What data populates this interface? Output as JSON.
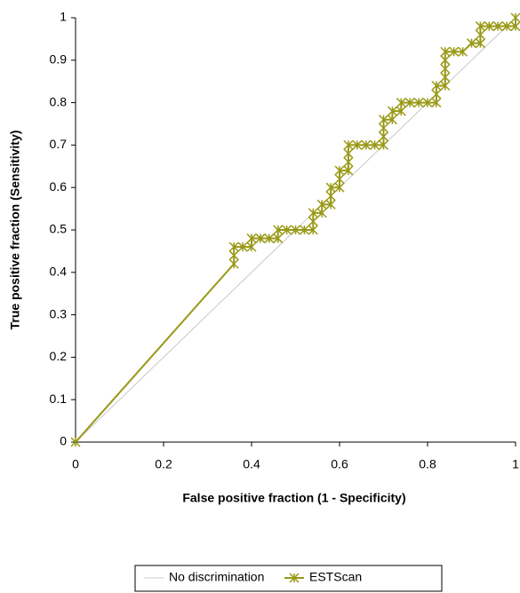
{
  "chart_data": {
    "type": "line",
    "xlabel": "False positive fraction (1 - Specificity)",
    "ylabel": "True positive fraction (Sensitivity)",
    "xlim": [
      0,
      1
    ],
    "ylim": [
      0,
      1
    ],
    "xticks": [
      0,
      0.2,
      0.4,
      0.6,
      0.8,
      1
    ],
    "yticks": [
      0,
      0.1,
      0.2,
      0.3,
      0.4,
      0.5,
      0.6,
      0.7,
      0.8,
      0.9,
      1
    ],
    "legend": "bottom",
    "series": [
      {
        "name": "No discrimination",
        "color": "#c8c8c8",
        "marker": "none",
        "x": [
          0,
          1
        ],
        "values": [
          0,
          1
        ]
      },
      {
        "name": "ESTScan",
        "color": "#999917",
        "marker": "asterisk",
        "x": [
          0,
          0.36,
          0.36,
          0.36,
          0.38,
          0.4,
          0.4,
          0.42,
          0.44,
          0.46,
          0.46,
          0.48,
          0.5,
          0.52,
          0.54,
          0.54,
          0.54,
          0.56,
          0.56,
          0.58,
          0.58,
          0.58,
          0.6,
          0.6,
          0.6,
          0.62,
          0.62,
          0.62,
          0.62,
          0.64,
          0.66,
          0.68,
          0.7,
          0.7,
          0.7,
          0.7,
          0.72,
          0.72,
          0.74,
          0.74,
          0.76,
          0.78,
          0.8,
          0.82,
          0.82,
          0.82,
          0.84,
          0.84,
          0.84,
          0.84,
          0.84,
          0.86,
          0.88,
          0.9,
          0.92,
          0.92,
          0.92,
          0.94,
          0.96,
          0.98,
          1.0,
          1.0
        ],
        "values": [
          0,
          0.42,
          0.44,
          0.46,
          0.46,
          0.46,
          0.48,
          0.48,
          0.48,
          0.48,
          0.5,
          0.5,
          0.5,
          0.5,
          0.5,
          0.52,
          0.54,
          0.54,
          0.56,
          0.56,
          0.58,
          0.6,
          0.6,
          0.62,
          0.64,
          0.64,
          0.66,
          0.68,
          0.7,
          0.7,
          0.7,
          0.7,
          0.7,
          0.72,
          0.74,
          0.76,
          0.76,
          0.78,
          0.78,
          0.8,
          0.8,
          0.8,
          0.8,
          0.8,
          0.82,
          0.84,
          0.84,
          0.86,
          0.88,
          0.9,
          0.92,
          0.92,
          0.92,
          0.94,
          0.94,
          0.96,
          0.98,
          0.98,
          0.98,
          0.98,
          0.98,
          1.0
        ]
      }
    ]
  }
}
